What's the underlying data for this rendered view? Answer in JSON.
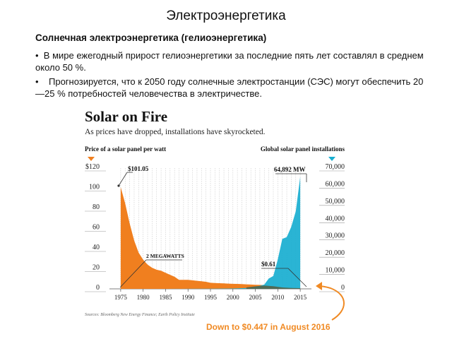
{
  "slide": {
    "title": "Электроэнергетика",
    "subtitle": "Солнечная электроэнергетика (гелиоэнергетика)",
    "bullets": [
      "В мире ежегодный прирост гелиоэнергетики за последние пять лет составлял в среднем около 50 %.",
      "Прогнозируется, что к 2050 году солнечные электростанции (СЭС) могут обеспечить 20—25 % потребностей человечества в электричестве."
    ]
  },
  "chart_data": {
    "type": "area",
    "title": "Solar on Fire",
    "subtitle": "As prices have dropped, installations have skyrocketed.",
    "left_axis_title": "Price of a solar panel per watt",
    "right_axis_title": "Global solar panel installations",
    "x_ticks": [
      "1975",
      "1980",
      "1985",
      "1990",
      "1995",
      "2000",
      "2005",
      "2010",
      "2015"
    ],
    "xlim": [
      1975,
      2015
    ],
    "left_ylim": [
      0,
      120
    ],
    "left_ticks": [
      "0",
      "20",
      "40",
      "60",
      "80",
      "100",
      "$120"
    ],
    "right_ylim": [
      0,
      70000
    ],
    "right_ticks": [
      "0",
      "10,000",
      "20,000",
      "30,000",
      "40,000",
      "50,000",
      "60,000",
      "70,000"
    ],
    "grid": true,
    "series": [
      {
        "axis": "left",
        "color": "#f07f1f",
        "x": [
          1975,
          1976,
          1977,
          1978,
          1979,
          1980,
          1981,
          1982,
          1983,
          1984,
          1985,
          1986,
          1987,
          1988,
          1989,
          1990,
          1991,
          1992,
          1993,
          1994,
          1995,
          1996,
          1997,
          1998,
          1999,
          2000,
          2001,
          2002,
          2003,
          2004,
          2005,
          2006,
          2007,
          2008,
          2009,
          2010,
          2011,
          2012,
          2013,
          2014,
          2015
        ],
        "values": [
          101.05,
          85,
          65,
          48,
          36,
          29,
          24,
          21,
          19,
          18,
          16,
          14,
          12,
          9,
          9,
          9,
          8.5,
          8,
          7.5,
          7,
          6,
          5.8,
          5.6,
          5.4,
          5.2,
          5,
          4.9,
          4.7,
          4.5,
          4.3,
          4,
          3.9,
          3.7,
          3.3,
          2.4,
          1.6,
          1.2,
          0.9,
          0.8,
          0.7,
          0.61
        ]
      },
      {
        "axis": "right",
        "color": "#18aed0",
        "x": [
          1975,
          1980,
          1985,
          1990,
          1995,
          2000,
          2003,
          2005,
          2006,
          2007,
          2008,
          2009,
          2010,
          2011,
          2012,
          2013,
          2014,
          2015
        ],
        "values": [
          2,
          5,
          10,
          30,
          70,
          200,
          500,
          1300,
          1700,
          2500,
          6000,
          7500,
          17000,
          29000,
          30000,
          36000,
          45000,
          64892
        ]
      }
    ],
    "annotations": [
      "$101.05",
      "64,892 MW",
      "2 MEGAWATTS",
      "$0.61"
    ],
    "source": "Sources: Bloomberg New Energy Finance; Earth Policy Institute",
    "callout": "Down to $0.447 in August 2016"
  },
  "colors": {
    "orange": "#f07f1f",
    "blue": "#18aed0",
    "callout": "#f08a24"
  }
}
